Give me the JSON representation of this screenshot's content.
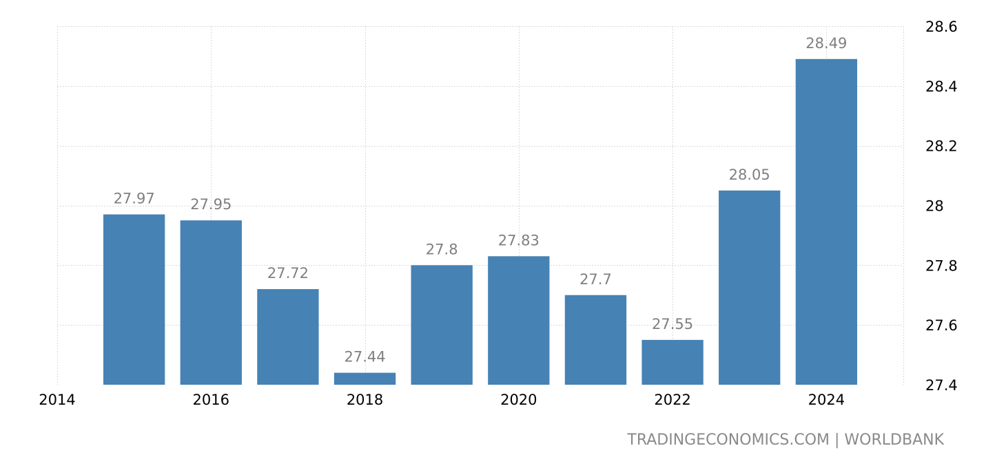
{
  "chart_data": {
    "type": "bar",
    "categories": [
      "2015",
      "2016",
      "2017",
      "2018",
      "2019",
      "2020",
      "2021",
      "2022",
      "2023",
      "2024"
    ],
    "x": [
      2015,
      2016,
      2017,
      2018,
      2019,
      2020,
      2021,
      2022,
      2023,
      2024
    ],
    "values": [
      27.97,
      27.95,
      27.72,
      27.44,
      27.8,
      27.83,
      27.7,
      27.55,
      28.05,
      28.49
    ],
    "data_labels": [
      "27.97",
      "27.95",
      "27.72",
      "27.44",
      "27.8",
      "27.83",
      "27.7",
      "27.55",
      "28.05",
      "28.49"
    ],
    "xlim": [
      2014,
      2025
    ],
    "x_ticks": [
      "2014",
      "2016",
      "2018",
      "2020",
      "2022",
      "2024"
    ],
    "x_tick_values": [
      2014,
      2016,
      2018,
      2020,
      2022,
      2024
    ],
    "ylim": [
      27.4,
      28.6
    ],
    "y_ticks": [
      "27.4",
      "27.6",
      "27.8",
      "28",
      "28.2",
      "28.4",
      "28.6"
    ],
    "y_tick_values": [
      27.4,
      27.6,
      27.8,
      28.0,
      28.2,
      28.4,
      28.6
    ],
    "y_axis_position": "right",
    "grid": true,
    "legend": "none",
    "bar_color": "#4682b4",
    "label_color": "#7f7f7f"
  },
  "source": "TRADINGECONOMICS.COM  |  WORLDBANK"
}
